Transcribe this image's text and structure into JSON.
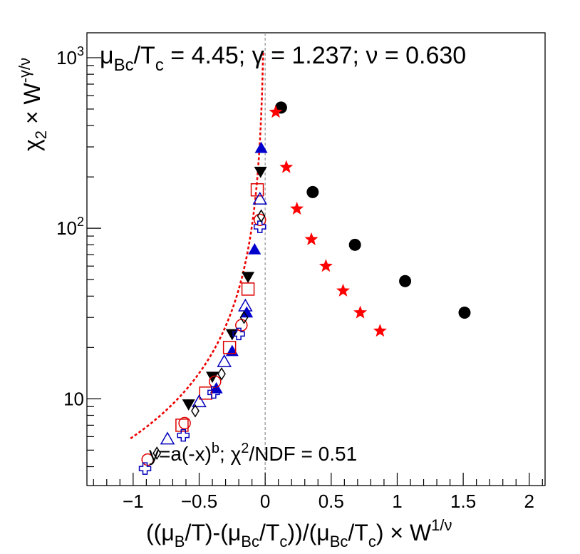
{
  "chart_data": {
    "type": "scatter",
    "title": "",
    "xlabel": "((μB/T)-(μBc/Tc))/(μBc/Tc) × W^(1/ν)",
    "ylabel": "χ2 × W^(-γ/ν)",
    "xlim": [
      -1.35,
      2.12
    ],
    "ylim": [
      3.1,
      1400
    ],
    "y_scale": "log",
    "x_ticks": [
      {
        "value": -1,
        "label": "−1"
      },
      {
        "value": -0.5,
        "label": "−0.5"
      },
      {
        "value": 0,
        "label": "0"
      },
      {
        "value": 0.5,
        "label": "0.5"
      },
      {
        "value": 1,
        "label": "1"
      },
      {
        "value": 1.5,
        "label": "1.5"
      },
      {
        "value": 2,
        "label": "2"
      }
    ],
    "y_ticks": [
      {
        "value": 10,
        "base": "10",
        "exp": ""
      },
      {
        "value": 100,
        "base": "10",
        "exp": "2"
      },
      {
        "value": 1000,
        "base": "10",
        "exp": "3"
      }
    ],
    "xlabel_parts": {
      "open": "((μ",
      "s1": "B",
      "m1": "/T)-(μ",
      "s2": "Bc",
      "m2": "/T",
      "s3": "c",
      "m3": "))/(μ",
      "s4": "Bc",
      "m4": "/T",
      "s5": "c",
      "m5": ") × W",
      "sup": "1/ν"
    },
    "ylabel_parts": {
      "chi": "χ",
      "sub": "2",
      "times": " × W",
      "sup": "-γ/ν"
    },
    "annotations": {
      "params": {
        "mu": "μ",
        "sub1": "Bc",
        "slash": "/T",
        "sub2": "c",
        "rest": " = 4.45;  γ = 1.237;  ν = 0.630"
      },
      "fit": {
        "prefix": "y=a(-x)",
        "sup1": "b",
        "mid": ";  χ",
        "sup2": "2",
        "rest": "/NDF = 0.51"
      }
    },
    "critical_line_x": 0,
    "fit_curve": {
      "a": 6.0,
      "b": -1.237,
      "x_range": [
        -1.02,
        -0.015
      ],
      "color": "#ee0000"
    },
    "series": [
      {
        "name": "black-circles",
        "marker": "circle-filled",
        "color": "#000000",
        "points": [
          [
            0.12,
            510
          ],
          [
            0.36,
            163
          ],
          [
            0.68,
            80
          ],
          [
            1.06,
            49
          ],
          [
            1.51,
            32
          ]
        ]
      },
      {
        "name": "red-stars",
        "marker": "star",
        "color": "#ff0000",
        "points": [
          [
            0.08,
            480
          ],
          [
            0.16,
            228
          ],
          [
            0.24,
            130
          ],
          [
            0.35,
            86
          ],
          [
            0.46,
            60
          ],
          [
            0.59,
            43
          ],
          [
            0.72,
            32
          ],
          [
            0.87,
            25
          ]
        ]
      },
      {
        "name": "blue-filled-triangles",
        "marker": "triangle-up-filled",
        "color": "#0000cc",
        "points": [
          [
            -0.03,
            295
          ],
          [
            -0.08,
            75
          ],
          [
            -0.14,
            32
          ],
          [
            -0.25,
            19
          ],
          [
            -0.37,
            11.5
          ]
        ]
      },
      {
        "name": "black-filled-down-triangles",
        "marker": "triangle-down-filled",
        "color": "#000000",
        "points": [
          [
            -0.035,
            215
          ],
          [
            -0.13,
            52
          ],
          [
            -0.25,
            24
          ],
          [
            -0.4,
            13.5
          ],
          [
            -0.58,
            9.3
          ]
        ]
      },
      {
        "name": "red-open-squares",
        "marker": "square-open",
        "color": "#dd0000",
        "points": [
          [
            -0.06,
            168
          ],
          [
            -0.13,
            44
          ],
          [
            -0.27,
            20
          ],
          [
            -0.45,
            10.8
          ],
          [
            -0.63,
            7.0
          ]
        ]
      },
      {
        "name": "blue-open-triangles",
        "marker": "triangle-up-open",
        "color": "#0000bb",
        "points": [
          [
            -0.04,
            148
          ],
          [
            -0.15,
            35
          ],
          [
            -0.31,
            16.5
          ],
          [
            -0.5,
            9.6
          ],
          [
            -0.74,
            5.8
          ]
        ]
      },
      {
        "name": "red-open-circles",
        "marker": "circle-open",
        "color": "#dd0000",
        "points": [
          [
            -0.04,
            112
          ],
          [
            -0.18,
            27
          ],
          [
            -0.38,
            12.6
          ],
          [
            -0.61,
            7.2
          ],
          [
            -0.89,
            4.4
          ]
        ]
      },
      {
        "name": "blue-open-crosses",
        "marker": "cross-open",
        "color": "#0000bb",
        "points": [
          [
            -0.04,
            102
          ],
          [
            -0.2,
            24
          ],
          [
            -0.39,
            10.9
          ],
          [
            -0.62,
            6.1
          ],
          [
            -0.91,
            3.9
          ]
        ]
      },
      {
        "name": "black-open-diamonds",
        "marker": "diamond-open",
        "color": "#000000",
        "points": [
          [
            -0.03,
            118
          ],
          [
            -0.16,
            30
          ],
          [
            -0.33,
            14
          ],
          [
            -0.53,
            8.5
          ],
          [
            -0.82,
            4.8
          ]
        ]
      }
    ]
  }
}
